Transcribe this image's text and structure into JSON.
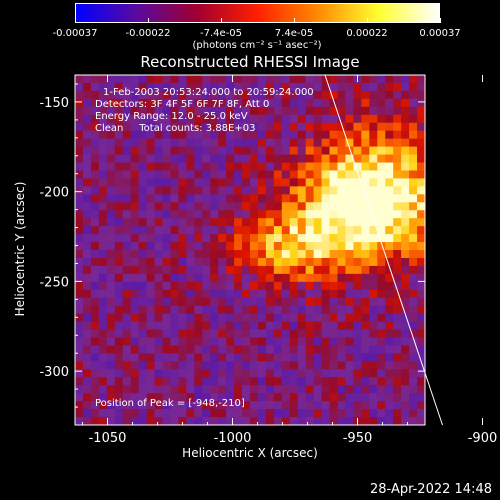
{
  "colorbar": {
    "ticks": [
      "-0.00037",
      "-0.00022",
      "-7.4e-05",
      "7.4e-05",
      "0.00022",
      "0.00037"
    ],
    "units": "(photons cm⁻² s⁻¹ asec⁻²)",
    "colors": [
      "#0000ff",
      "#5a0aa0",
      "#a00030",
      "#ff2000",
      "#ff8a00",
      "#ffff30",
      "#ffffff"
    ]
  },
  "chart_data": {
    "type": "heatmap",
    "title": "Reconstructed RHESSI Image",
    "xlabel": "Heliocentric X (arcsec)",
    "ylabel": "Heliocentric Y (arcsec)",
    "xlim": [
      -1063,
      -923
    ],
    "ylim": [
      -330,
      -135
    ],
    "xticks": [
      -1050,
      -1000,
      -950,
      -900
    ],
    "yticks": [
      -150,
      -200,
      -250,
      -300
    ],
    "xtick_labels": [
      "-1050",
      "-1000",
      "-950",
      "-900"
    ],
    "ytick_labels": [
      "-150",
      "-200",
      "-250",
      "-300"
    ],
    "peak": {
      "x": -948,
      "y": -210
    },
    "limb_line": {
      "x": [
        -963,
        -916
      ],
      "y": [
        -135,
        -330
      ]
    }
  },
  "info": {
    "line1": "1-Feb-2003 20:53:24.000 to 20:59:24.000",
    "line2": "Detectors: 3F 4F 5F 6F 7F 8F, Att 0",
    "line3": "Energy Range: 12.0 - 25.0 keV",
    "line4": "Clean     Total counts: 3.88E+03",
    "peak_text": "Position of Peak = [-948,-210]"
  },
  "footer": "28-Apr-2022 14:48"
}
